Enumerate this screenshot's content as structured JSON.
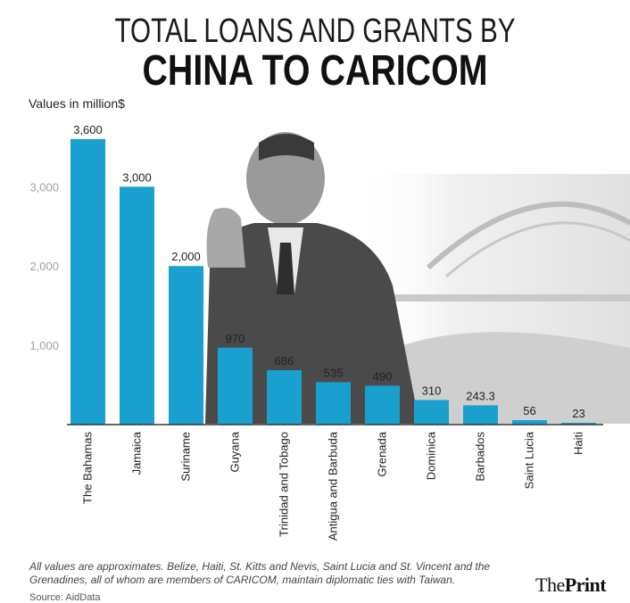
{
  "title_line1": "TOTAL LOANS AND GRANTS BY",
  "title_line2": "CHINA TO CARICOM",
  "units_label": "Values in million$",
  "footnote": "All values are approximates. Belize, Haiti, St. Kitts and Nevis, Saint Lucia and St. Vincent and the Grenadines, all of whom are members of CARICOM, maintain diplomatic ties with Taiwan.",
  "source": "Source: AidData",
  "logo": {
    "part1": "The",
    "part2": "Print"
  },
  "colors": {
    "bar": "#1aa0cf",
    "axis": "#333333",
    "tick_label": "#9aa4ab"
  },
  "chart_data": {
    "type": "bar",
    "categories": [
      "The Bahamas",
      "Jamaica",
      "Suriname",
      "Guyana",
      "Trinidad and Tobago",
      "Antigua and Barbuda",
      "Grenada",
      "Dominica",
      "Barbados",
      "Saint Lucia",
      "Haiti"
    ],
    "values": [
      3600,
      3000,
      2000,
      970,
      686,
      535,
      490,
      310,
      243.3,
      56,
      23
    ],
    "value_labels": [
      "3,600",
      "3,000",
      "2,000",
      "970",
      "686",
      "535",
      "490",
      "310",
      "243.3",
      "56",
      "23"
    ],
    "yticks": [
      1000,
      2000,
      3000
    ],
    "ytick_labels": [
      "1,000",
      "2,000",
      "3,000"
    ],
    "ylim": [
      0,
      3600
    ],
    "ylabel": "Values in million$",
    "xlabel": "",
    "grid": false,
    "legend": "none"
  }
}
